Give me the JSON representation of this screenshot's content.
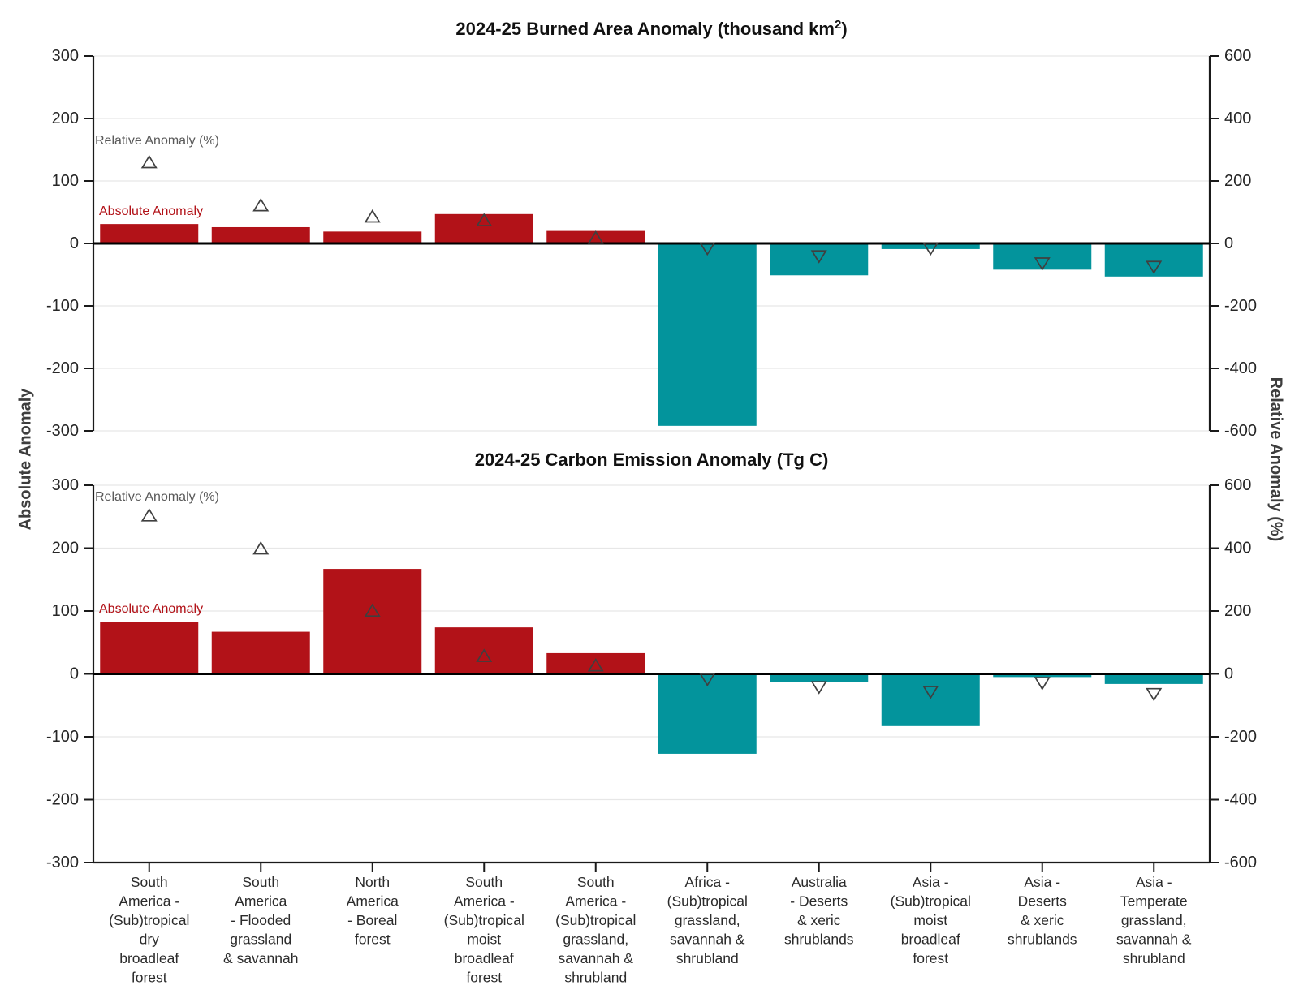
{
  "figure": {
    "background": "#ffffff",
    "left_axis_label": "Absolute Anomaly",
    "right_axis_label": "Relative Anomaly (%)",
    "colors": {
      "positive_bar": "#b21218",
      "negative_bar": "#03949c",
      "marker_edge": "#3f3f3f",
      "zero_line": "#000000",
      "grid_line": "#e7e7e7",
      "spine": "#1a1a1a",
      "tick_label": "#262626",
      "title": "#111111",
      "annotation_relative": "#595959",
      "annotation_absolute": "#b21218",
      "category_label": "#2b2b2b"
    }
  },
  "categories": [
    {
      "name": "South America - (Sub)tropical dry broadleaf forest",
      "lines": [
        "South",
        "America -",
        "(Sub)tropical",
        "dry",
        "broadleaf",
        "forest"
      ]
    },
    {
      "name": "South America - Flooded grassland & savannah",
      "lines": [
        "South",
        "America",
        "- Flooded",
        "grassland",
        "& savannah"
      ]
    },
    {
      "name": "North America - Boreal forest",
      "lines": [
        "North",
        "America",
        "- Boreal",
        "forest"
      ]
    },
    {
      "name": "South America - (Sub)tropical moist broadleaf forest",
      "lines": [
        "South",
        "America -",
        "(Sub)tropical",
        "moist",
        "broadleaf",
        "forest"
      ]
    },
    {
      "name": "South America - (Sub)tropical grassland, savannah & shrubland",
      "lines": [
        "South",
        "America -",
        "(Sub)tropical",
        "grassland,",
        "savannah &",
        "shrubland"
      ]
    },
    {
      "name": "Africa - (Sub)tropical grassland, savannah & shrubland",
      "lines": [
        "Africa -",
        "(Sub)tropical",
        "grassland,",
        "savannah &",
        "shrubland"
      ]
    },
    {
      "name": "Australia - Deserts & xeric shrublands",
      "lines": [
        "Australia",
        "- Deserts",
        "& xeric",
        "shrublands"
      ]
    },
    {
      "name": "Asia - (Sub)tropical moist broadleaf forest",
      "lines": [
        "Asia -",
        "(Sub)tropical",
        "moist",
        "broadleaf",
        "forest"
      ]
    },
    {
      "name": "Asia - Deserts & xeric shrublands",
      "lines": [
        "Asia -",
        "Deserts",
        "& xeric",
        "shrublands"
      ]
    },
    {
      "name": "Asia - Temperate grassland, savannah & shrubland",
      "lines": [
        "Asia -",
        "Temperate",
        "grassland,",
        "savannah &",
        "shrubland"
      ]
    }
  ],
  "chart_data": [
    {
      "type": "bar",
      "title_main": "2024-25 Burned Area Anomaly (thousand km",
      "title_sup": "2",
      "title_tail": ")",
      "left_axis": {
        "label": "Absolute Anomaly",
        "lim": [
          -300,
          300
        ],
        "ticks": [
          300,
          200,
          100,
          0,
          -100,
          -200,
          -300
        ]
      },
      "right_axis": {
        "label": "Relative Anomaly (%)",
        "lim": [
          -600,
          600
        ],
        "ticks": [
          600,
          400,
          200,
          0,
          -200,
          -400,
          -600
        ]
      },
      "grid": true,
      "legend_position": "inline-annotations",
      "series": [
        {
          "name": "Absolute Anomaly",
          "style": "bar",
          "values": [
            31,
            26,
            19,
            47,
            20,
            -292,
            -51,
            -9,
            -42,
            -53
          ]
        },
        {
          "name": "Relative Anomaly (%)",
          "style": "triangle-marker",
          "values": [
            261,
            123,
            87,
            75,
            19,
            -17,
            -42,
            -17,
            -65,
            -76
          ]
        }
      ],
      "annotations": [
        {
          "text": "Relative Anomaly (%)",
          "color_key": "annotation_relative"
        },
        {
          "text": "Absolute Anomaly",
          "color_key": "annotation_absolute"
        }
      ],
      "show_x_labels": false
    },
    {
      "type": "bar",
      "title_main": "2024-25 Carbon Emission Anomaly (Tg C)",
      "title_sup": "",
      "title_tail": "",
      "left_axis": {
        "label": "Absolute Anomaly",
        "lim": [
          -300,
          300
        ],
        "ticks": [
          300,
          200,
          100,
          0,
          -100,
          -200,
          -300
        ]
      },
      "right_axis": {
        "label": "Relative Anomaly (%)",
        "lim": [
          -600,
          600
        ],
        "ticks": [
          600,
          400,
          200,
          0,
          -200,
          -400,
          -600
        ]
      },
      "grid": true,
      "legend_position": "inline-annotations",
      "series": [
        {
          "name": "Absolute Anomaly",
          "style": "bar",
          "values": [
            83,
            67,
            167,
            74,
            33,
            -127,
            -13,
            -83,
            -5,
            -16
          ]
        },
        {
          "name": "Relative Anomaly (%)",
          "style": "triangle-marker",
          "values": [
            505,
            400,
            202,
            58,
            28,
            -18,
            -43,
            -58,
            -30,
            -65
          ]
        }
      ],
      "annotations": [
        {
          "text": "Relative Anomaly (%)",
          "color_key": "annotation_relative"
        },
        {
          "text": "Absolute Anomaly",
          "color_key": "annotation_absolute"
        }
      ],
      "show_x_labels": true
    }
  ]
}
